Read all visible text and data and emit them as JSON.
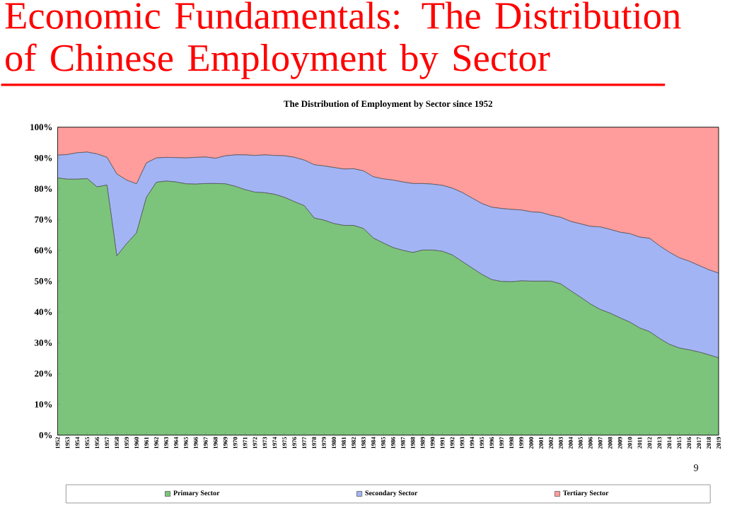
{
  "chart_data": {
    "type": "area",
    "stacked": true,
    "title": "Economic Fundamentals: The Distribution of Chinese Employment by Sector",
    "subtitle": "The Distribution of Employment by Sector since 1952",
    "categories": [
      "1952",
      "1953",
      "1954",
      "1955",
      "1956",
      "1957",
      "1958",
      "1959",
      "1960",
      "1961",
      "1962",
      "1963",
      "1964",
      "1965",
      "1966",
      "1967",
      "1968",
      "1969",
      "1970",
      "1971",
      "1972",
      "1973",
      "1974",
      "1975",
      "1976",
      "1977",
      "1978",
      "1979",
      "1980",
      "1981",
      "1982",
      "1983",
      "1984",
      "1985",
      "1986",
      "1987",
      "1988",
      "1989",
      "1990",
      "1991",
      "1992",
      "1993",
      "1994",
      "1995",
      "1996",
      "1997",
      "1998",
      "1999",
      "2000",
      "2001",
      "2002",
      "2003",
      "2004",
      "2005",
      "2006",
      "2007",
      "2008",
      "2009",
      "2010",
      "2011",
      "2012",
      "2013",
      "2014",
      "2015",
      "2016",
      "2017",
      "2018",
      "2019"
    ],
    "series": [
      {
        "name": "Primary Sector",
        "color": "#7cc47c",
        "values": [
          83.5,
          83.1,
          83.1,
          83.3,
          80.6,
          81.2,
          58.2,
          62.2,
          65.7,
          77.2,
          82.1,
          82.5,
          82.2,
          81.6,
          81.5,
          81.7,
          81.7,
          81.6,
          80.8,
          79.7,
          78.9,
          78.7,
          78.2,
          77.2,
          75.8,
          74.5,
          70.5,
          69.8,
          68.7,
          68.1,
          68.1,
          67.1,
          64.0,
          62.4,
          60.9,
          60.0,
          59.3,
          60.1,
          60.1,
          59.7,
          58.5,
          56.4,
          54.3,
          52.2,
          50.5,
          49.9,
          49.8,
          50.1,
          50.0,
          50.0,
          50.0,
          49.1,
          46.9,
          44.8,
          42.6,
          40.8,
          39.6,
          38.1,
          36.7,
          34.8,
          33.6,
          31.4,
          29.5,
          28.3,
          27.7,
          27.0,
          26.1,
          25.1
        ]
      },
      {
        "name": "Secondary Sector",
        "color": "#a3b4f5",
        "values": [
          7.4,
          8.0,
          8.6,
          8.6,
          10.7,
          9.0,
          26.6,
          20.6,
          15.9,
          11.2,
          7.9,
          7.7,
          7.9,
          8.4,
          8.7,
          8.6,
          8.2,
          9.1,
          10.2,
          11.3,
          11.9,
          12.3,
          12.6,
          13.5,
          14.4,
          14.8,
          17.3,
          17.6,
          18.2,
          18.3,
          18.4,
          18.7,
          19.9,
          20.8,
          21.9,
          22.2,
          22.4,
          21.6,
          21.4,
          21.4,
          21.7,
          22.4,
          22.7,
          23.0,
          23.5,
          23.7,
          23.5,
          23.0,
          22.5,
          22.3,
          21.4,
          21.6,
          22.5,
          23.8,
          25.2,
          26.8,
          27.2,
          27.8,
          28.7,
          29.5,
          30.3,
          30.1,
          29.9,
          29.3,
          28.8,
          28.1,
          27.6,
          27.5
        ]
      },
      {
        "name": "Tertiary Sector",
        "color": "#ff9c9c",
        "values": [
          9.1,
          8.9,
          8.3,
          8.1,
          8.7,
          9.8,
          15.2,
          17.2,
          18.4,
          11.6,
          10.0,
          9.8,
          9.9,
          10.0,
          9.8,
          9.7,
          10.1,
          9.3,
          9.0,
          9.0,
          9.2,
          9.0,
          9.2,
          9.3,
          9.8,
          10.7,
          12.2,
          12.6,
          13.1,
          13.6,
          13.5,
          14.2,
          16.1,
          16.8,
          17.2,
          17.8,
          18.3,
          18.3,
          18.5,
          18.9,
          19.8,
          21.2,
          23.0,
          24.8,
          26.0,
          26.4,
          26.7,
          26.9,
          27.5,
          27.7,
          28.6,
          29.3,
          30.6,
          31.4,
          32.2,
          32.4,
          33.2,
          34.1,
          34.6,
          35.7,
          36.1,
          38.5,
          40.6,
          42.4,
          43.5,
          44.9,
          46.3,
          47.4
        ]
      }
    ],
    "ylim": [
      0,
      100
    ],
    "yticks": [
      {
        "value": 0,
        "label": "0%"
      },
      {
        "value": 10,
        "label": "10%"
      },
      {
        "value": 20,
        "label": "20%"
      },
      {
        "value": 30,
        "label": "30%"
      },
      {
        "value": 40,
        "label": "40%"
      },
      {
        "value": 50,
        "label": "50%"
      },
      {
        "value": 60,
        "label": "60%"
      },
      {
        "value": 70,
        "label": "70%"
      },
      {
        "value": 80,
        "label": "80%"
      },
      {
        "value": 90,
        "label": "90%"
      },
      {
        "value": 100,
        "label": "100%"
      }
    ],
    "legend": "bottom",
    "annotations": [
      "9"
    ]
  }
}
